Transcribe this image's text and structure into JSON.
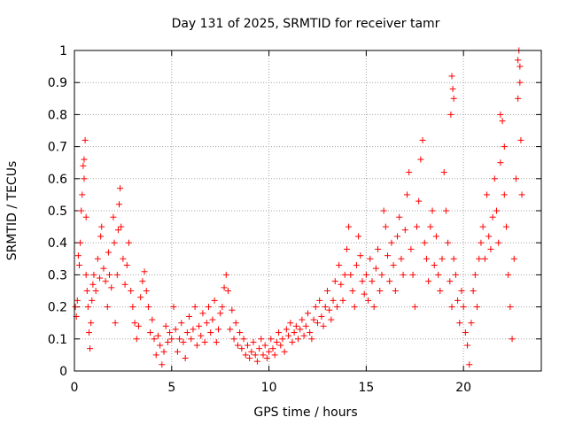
{
  "chart_data": {
    "type": "scatter",
    "title": "Day 131 of 2025, SRMTID for receiver tamr",
    "xlabel": "GPS time / hours",
    "ylabel": "SRMTID / TECUs",
    "xlim": [
      0,
      24
    ],
    "ylim": [
      0,
      1
    ],
    "x_ticks": [
      0,
      5,
      10,
      15,
      20
    ],
    "x_tick_labels": [
      "0",
      "5",
      "10",
      "15",
      "20"
    ],
    "y_ticks": [
      0,
      0.1,
      0.2,
      0.3,
      0.4,
      0.5,
      0.6,
      0.7,
      0.8,
      0.9,
      1
    ],
    "y_tick_labels": [
      "0",
      "0.1",
      "0.2",
      "0.3",
      "0.4",
      "0.5",
      "0.6",
      "0.7",
      "0.8",
      "0.9",
      "1"
    ],
    "grid": true,
    "legend": "none",
    "marker": "+",
    "color": "#ff0000",
    "series": [
      {
        "name": "SRMTID",
        "points": [
          [
            0.05,
            0.2
          ],
          [
            0.1,
            0.17
          ],
          [
            0.15,
            0.22
          ],
          [
            0.2,
            0.36
          ],
          [
            0.25,
            0.33
          ],
          [
            0.3,
            0.4
          ],
          [
            0.35,
            0.5
          ],
          [
            0.4,
            0.55
          ],
          [
            0.45,
            0.64
          ],
          [
            0.5,
            0.66
          ],
          [
            0.5,
            0.6
          ],
          [
            0.55,
            0.72
          ],
          [
            0.6,
            0.48
          ],
          [
            0.6,
            0.3
          ],
          [
            0.65,
            0.25
          ],
          [
            0.7,
            0.2
          ],
          [
            0.75,
            0.12
          ],
          [
            0.8,
            0.07
          ],
          [
            0.85,
            0.15
          ],
          [
            0.9,
            0.22
          ],
          [
            0.95,
            0.27
          ],
          [
            1.0,
            0.3
          ],
          [
            1.1,
            0.25
          ],
          [
            1.2,
            0.35
          ],
          [
            1.3,
            0.29
          ],
          [
            1.35,
            0.42
          ],
          [
            1.4,
            0.45
          ],
          [
            1.5,
            0.32
          ],
          [
            1.6,
            0.28
          ],
          [
            1.7,
            0.2
          ],
          [
            1.75,
            0.37
          ],
          [
            1.8,
            0.3
          ],
          [
            1.9,
            0.26
          ],
          [
            2.0,
            0.48
          ],
          [
            2.05,
            0.4
          ],
          [
            2.1,
            0.15
          ],
          [
            2.2,
            0.3
          ],
          [
            2.25,
            0.44
          ],
          [
            2.3,
            0.52
          ],
          [
            2.35,
            0.57
          ],
          [
            2.4,
            0.45
          ],
          [
            2.5,
            0.35
          ],
          [
            2.6,
            0.27
          ],
          [
            2.7,
            0.33
          ],
          [
            2.8,
            0.4
          ],
          [
            2.9,
            0.25
          ],
          [
            3.0,
            0.2
          ],
          [
            3.1,
            0.15
          ],
          [
            3.2,
            0.1
          ],
          [
            3.3,
            0.14
          ],
          [
            3.4,
            0.23
          ],
          [
            3.5,
            0.28
          ],
          [
            3.6,
            0.31
          ],
          [
            3.7,
            0.25
          ],
          [
            3.8,
            0.2
          ],
          [
            3.9,
            0.12
          ],
          [
            4.0,
            0.16
          ],
          [
            4.1,
            0.1
          ],
          [
            4.2,
            0.05
          ],
          [
            4.3,
            0.11
          ],
          [
            4.4,
            0.08
          ],
          [
            4.5,
            0.02
          ],
          [
            4.6,
            0.06
          ],
          [
            4.7,
            0.14
          ],
          [
            4.8,
            0.09
          ],
          [
            4.9,
            0.12
          ],
          [
            5.0,
            0.1
          ],
          [
            5.1,
            0.2
          ],
          [
            5.2,
            0.13
          ],
          [
            5.3,
            0.06
          ],
          [
            5.4,
            0.1
          ],
          [
            5.5,
            0.15
          ],
          [
            5.6,
            0.09
          ],
          [
            5.7,
            0.04
          ],
          [
            5.8,
            0.12
          ],
          [
            5.9,
            0.17
          ],
          [
            6.0,
            0.1
          ],
          [
            6.1,
            0.13
          ],
          [
            6.2,
            0.2
          ],
          [
            6.3,
            0.08
          ],
          [
            6.4,
            0.14
          ],
          [
            6.5,
            0.11
          ],
          [
            6.6,
            0.18
          ],
          [
            6.7,
            0.09
          ],
          [
            6.8,
            0.15
          ],
          [
            6.9,
            0.2
          ],
          [
            7.0,
            0.12
          ],
          [
            7.1,
            0.16
          ],
          [
            7.2,
            0.22
          ],
          [
            7.3,
            0.09
          ],
          [
            7.4,
            0.13
          ],
          [
            7.5,
            0.18
          ],
          [
            7.6,
            0.2
          ],
          [
            7.7,
            0.26
          ],
          [
            7.8,
            0.3
          ],
          [
            7.9,
            0.25
          ],
          [
            8.0,
            0.13
          ],
          [
            8.1,
            0.19
          ],
          [
            8.2,
            0.1
          ],
          [
            8.3,
            0.15
          ],
          [
            8.4,
            0.08
          ],
          [
            8.5,
            0.12
          ],
          [
            8.6,
            0.07
          ],
          [
            8.7,
            0.1
          ],
          [
            8.8,
            0.05
          ],
          [
            8.9,
            0.08
          ],
          [
            9.0,
            0.04
          ],
          [
            9.1,
            0.06
          ],
          [
            9.2,
            0.09
          ],
          [
            9.3,
            0.05
          ],
          [
            9.4,
            0.03
          ],
          [
            9.5,
            0.07
          ],
          [
            9.6,
            0.1
          ],
          [
            9.7,
            0.05
          ],
          [
            9.8,
            0.08
          ],
          [
            9.9,
            0.04
          ],
          [
            10.0,
            0.06
          ],
          [
            10.1,
            0.1
          ],
          [
            10.2,
            0.07
          ],
          [
            10.3,
            0.05
          ],
          [
            10.4,
            0.09
          ],
          [
            10.5,
            0.12
          ],
          [
            10.6,
            0.08
          ],
          [
            10.7,
            0.1
          ],
          [
            10.8,
            0.06
          ],
          [
            10.9,
            0.13
          ],
          [
            11.0,
            0.11
          ],
          [
            11.1,
            0.15
          ],
          [
            11.2,
            0.09
          ],
          [
            11.3,
            0.12
          ],
          [
            11.4,
            0.14
          ],
          [
            11.5,
            0.1
          ],
          [
            11.6,
            0.13
          ],
          [
            11.7,
            0.16
          ],
          [
            11.8,
            0.11
          ],
          [
            11.9,
            0.14
          ],
          [
            12.0,
            0.18
          ],
          [
            12.1,
            0.12
          ],
          [
            12.2,
            0.1
          ],
          [
            12.3,
            0.16
          ],
          [
            12.4,
            0.2
          ],
          [
            12.5,
            0.15
          ],
          [
            12.6,
            0.22
          ],
          [
            12.7,
            0.17
          ],
          [
            12.8,
            0.14
          ],
          [
            12.9,
            0.2
          ],
          [
            13.0,
            0.25
          ],
          [
            13.1,
            0.19
          ],
          [
            13.2,
            0.16
          ],
          [
            13.3,
            0.22
          ],
          [
            13.4,
            0.28
          ],
          [
            13.5,
            0.2
          ],
          [
            13.6,
            0.33
          ],
          [
            13.7,
            0.27
          ],
          [
            13.8,
            0.22
          ],
          [
            13.9,
            0.3
          ],
          [
            14.0,
            0.38
          ],
          [
            14.1,
            0.45
          ],
          [
            14.2,
            0.3
          ],
          [
            14.3,
            0.25
          ],
          [
            14.4,
            0.2
          ],
          [
            14.5,
            0.33
          ],
          [
            14.6,
            0.42
          ],
          [
            14.7,
            0.36
          ],
          [
            14.8,
            0.28
          ],
          [
            14.9,
            0.24
          ],
          [
            15.0,
            0.3
          ],
          [
            15.1,
            0.22
          ],
          [
            15.2,
            0.35
          ],
          [
            15.3,
            0.28
          ],
          [
            15.4,
            0.2
          ],
          [
            15.5,
            0.32
          ],
          [
            15.6,
            0.38
          ],
          [
            15.7,
            0.25
          ],
          [
            15.8,
            0.3
          ],
          [
            15.9,
            0.5
          ],
          [
            16.0,
            0.45
          ],
          [
            16.1,
            0.36
          ],
          [
            16.2,
            0.28
          ],
          [
            16.3,
            0.4
          ],
          [
            16.4,
            0.33
          ],
          [
            16.5,
            0.25
          ],
          [
            16.6,
            0.42
          ],
          [
            16.7,
            0.48
          ],
          [
            16.8,
            0.35
          ],
          [
            16.9,
            0.3
          ],
          [
            17.0,
            0.44
          ],
          [
            17.1,
            0.55
          ],
          [
            17.2,
            0.62
          ],
          [
            17.3,
            0.38
          ],
          [
            17.4,
            0.3
          ],
          [
            17.5,
            0.2
          ],
          [
            17.6,
            0.45
          ],
          [
            17.7,
            0.53
          ],
          [
            17.8,
            0.66
          ],
          [
            17.9,
            0.72
          ],
          [
            18.0,
            0.4
          ],
          [
            18.1,
            0.35
          ],
          [
            18.2,
            0.28
          ],
          [
            18.3,
            0.45
          ],
          [
            18.4,
            0.5
          ],
          [
            18.5,
            0.33
          ],
          [
            18.6,
            0.42
          ],
          [
            18.7,
            0.3
          ],
          [
            18.8,
            0.25
          ],
          [
            18.9,
            0.35
          ],
          [
            19.0,
            0.62
          ],
          [
            19.1,
            0.5
          ],
          [
            19.2,
            0.4
          ],
          [
            19.3,
            0.28
          ],
          [
            19.4,
            0.2
          ],
          [
            19.5,
            0.35
          ],
          [
            19.6,
            0.3
          ],
          [
            19.7,
            0.22
          ],
          [
            19.8,
            0.15
          ],
          [
            19.9,
            0.25
          ],
          [
            20.0,
            0.2
          ],
          [
            20.1,
            0.12
          ],
          [
            20.2,
            0.08
          ],
          [
            20.3,
            0.02
          ],
          [
            20.4,
            0.15
          ],
          [
            20.5,
            0.25
          ],
          [
            20.6,
            0.3
          ],
          [
            20.7,
            0.2
          ],
          [
            20.8,
            0.35
          ],
          [
            20.9,
            0.4
          ],
          [
            21.0,
            0.45
          ],
          [
            21.1,
            0.35
          ],
          [
            21.2,
            0.55
          ],
          [
            21.3,
            0.42
          ],
          [
            21.4,
            0.38
          ],
          [
            21.5,
            0.48
          ],
          [
            21.6,
            0.6
          ],
          [
            21.7,
            0.5
          ],
          [
            21.8,
            0.4
          ],
          [
            21.9,
            0.65
          ],
          [
            22.0,
            0.78
          ],
          [
            22.1,
            0.55
          ],
          [
            22.2,
            0.45
          ],
          [
            22.3,
            0.3
          ],
          [
            22.4,
            0.2
          ],
          [
            22.5,
            0.1
          ],
          [
            22.6,
            0.35
          ],
          [
            22.7,
            0.6
          ],
          [
            22.8,
            0.85
          ],
          [
            22.9,
            0.95
          ],
          [
            23.0,
            0.55
          ],
          [
            19.4,
            0.92
          ],
          [
            19.45,
            0.88
          ],
          [
            19.5,
            0.85
          ],
          [
            19.35,
            0.8
          ],
          [
            22.85,
            1.0
          ],
          [
            22.8,
            0.97
          ],
          [
            22.9,
            0.9
          ],
          [
            22.95,
            0.72
          ],
          [
            21.9,
            0.8
          ],
          [
            22.1,
            0.7
          ]
        ]
      }
    ]
  }
}
